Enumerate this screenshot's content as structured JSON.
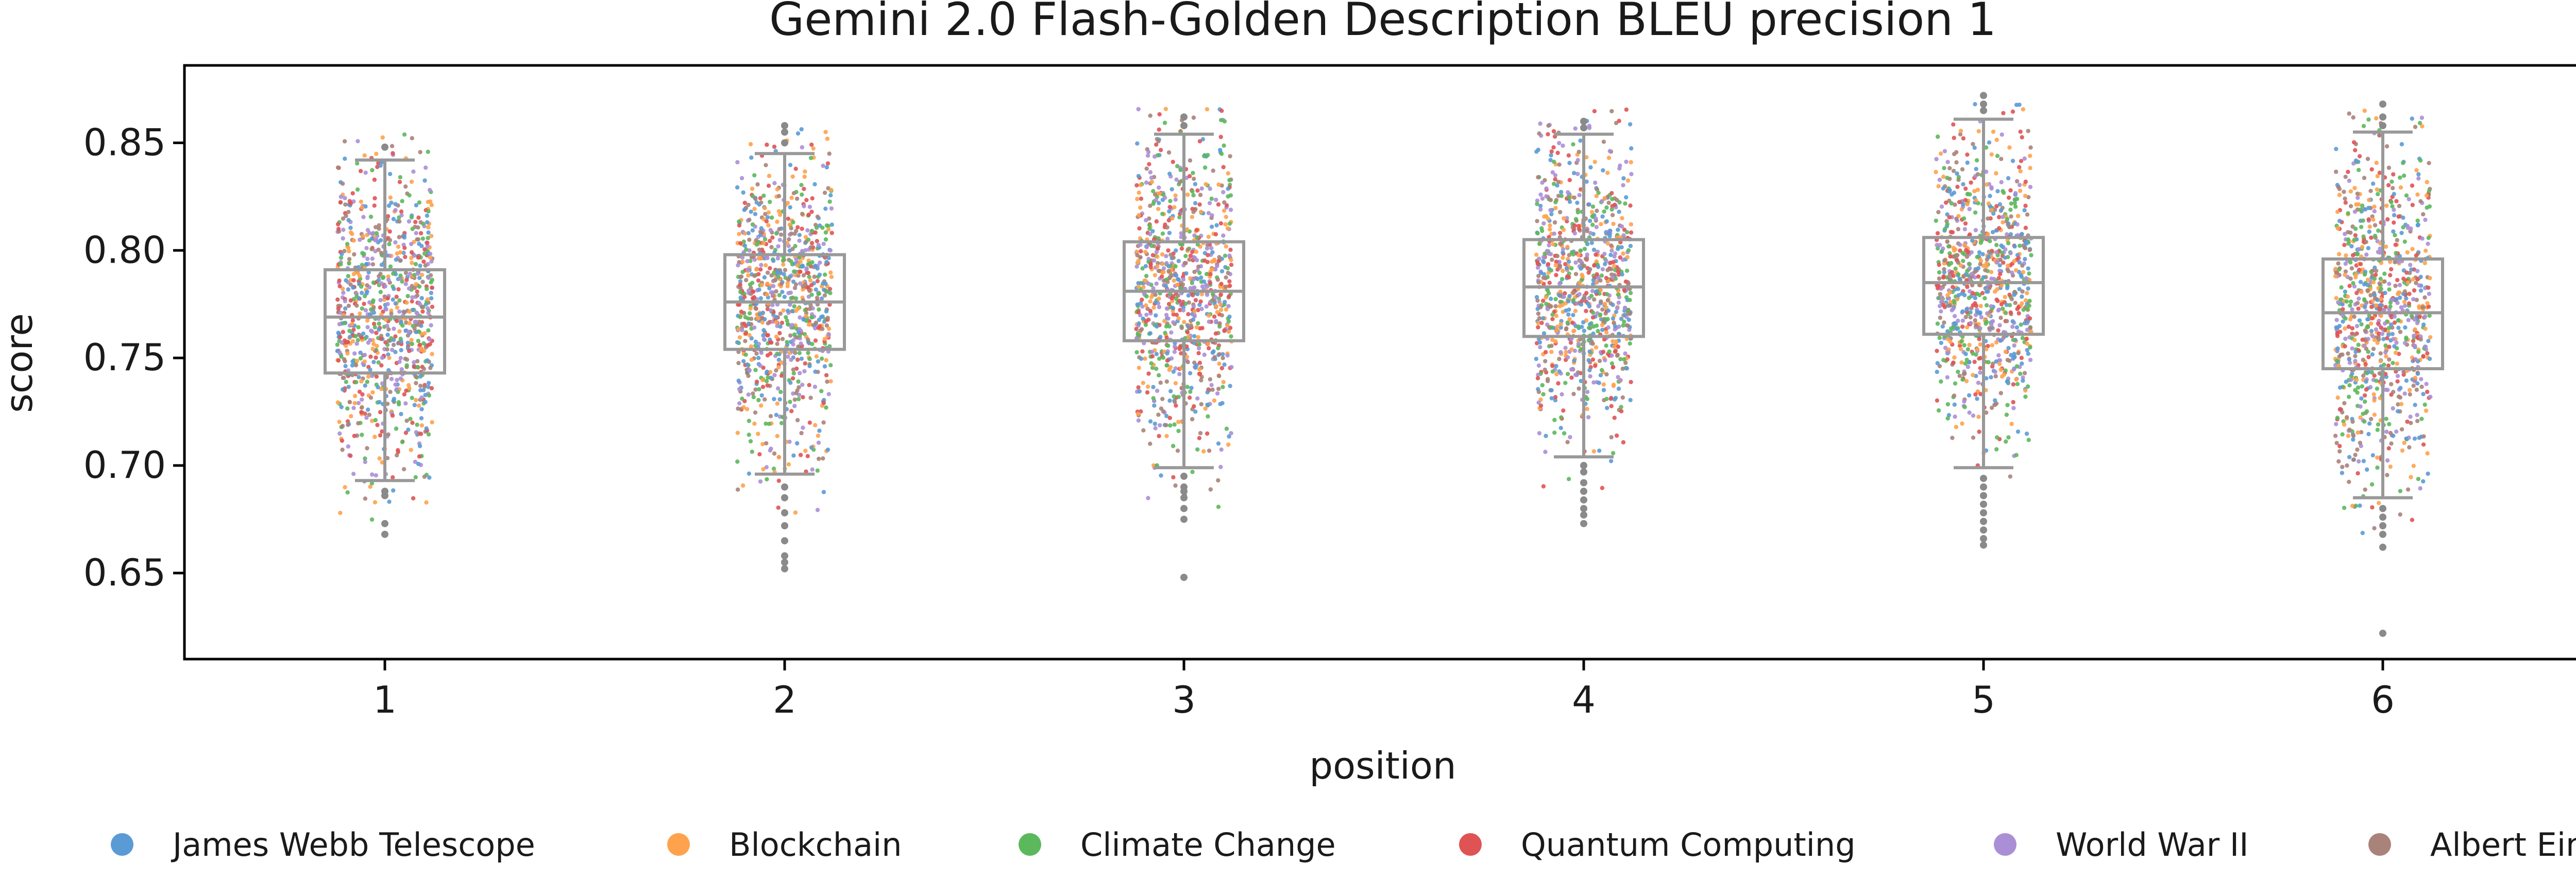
{
  "chart_data": {
    "type": "box",
    "title": "Gemini 2.0 Flash-Golden Description BLEU precision 1",
    "xlabel": "position",
    "ylabel": "score",
    "categories": [
      "1",
      "2",
      "3",
      "4",
      "5",
      "6"
    ],
    "ylim": [
      0.61,
      0.886
    ],
    "yticks": [
      "0.65",
      "0.70",
      "0.75",
      "0.80",
      "0.85"
    ],
    "box_color": "#999999",
    "boxes": [
      {
        "position": "1",
        "whisker_low": 0.693,
        "q1": 0.743,
        "median": 0.769,
        "q3": 0.791,
        "whisker_high": 0.842,
        "outliers": [
          0.688,
          0.686,
          0.673,
          0.668,
          0.848
        ]
      },
      {
        "position": "2",
        "whisker_low": 0.696,
        "q1": 0.754,
        "median": 0.776,
        "q3": 0.798,
        "whisker_high": 0.845,
        "outliers": [
          0.69,
          0.685,
          0.678,
          0.672,
          0.665,
          0.658,
          0.655,
          0.652,
          0.85,
          0.855,
          0.858
        ]
      },
      {
        "position": "3",
        "whisker_low": 0.699,
        "q1": 0.758,
        "median": 0.781,
        "q3": 0.804,
        "whisker_high": 0.854,
        "outliers": [
          0.695,
          0.69,
          0.688,
          0.685,
          0.68,
          0.675,
          0.648,
          0.858,
          0.862
        ]
      },
      {
        "position": "4",
        "whisker_low": 0.704,
        "q1": 0.76,
        "median": 0.783,
        "q3": 0.805,
        "whisker_high": 0.854,
        "outliers": [
          0.7,
          0.697,
          0.692,
          0.688,
          0.684,
          0.68,
          0.677,
          0.673,
          0.857,
          0.86
        ]
      },
      {
        "position": "5",
        "whisker_low": 0.699,
        "q1": 0.761,
        "median": 0.785,
        "q3": 0.806,
        "whisker_high": 0.861,
        "outliers": [
          0.694,
          0.69,
          0.686,
          0.682,
          0.678,
          0.674,
          0.67,
          0.666,
          0.663,
          0.865,
          0.868,
          0.872
        ]
      },
      {
        "position": "6",
        "whisker_low": 0.685,
        "q1": 0.745,
        "median": 0.771,
        "q3": 0.796,
        "whisker_high": 0.855,
        "outliers": [
          0.68,
          0.676,
          0.672,
          0.668,
          0.662,
          0.622,
          0.858,
          0.862,
          0.868
        ]
      }
    ],
    "series": [
      {
        "name": "James Webb Telescope",
        "color": "#5b9bd5"
      },
      {
        "name": "Blockchain",
        "color": "#ffa24d"
      },
      {
        "name": "Climate Change",
        "color": "#5cb85c"
      },
      {
        "name": "Quantum Computing",
        "color": "#e05355"
      },
      {
        "name": "World War II",
        "color": "#ab8fd6"
      },
      {
        "name": "Albert Einstein",
        "color": "#a9837a"
      }
    ],
    "legend_position": "bottom",
    "grid": false
  }
}
